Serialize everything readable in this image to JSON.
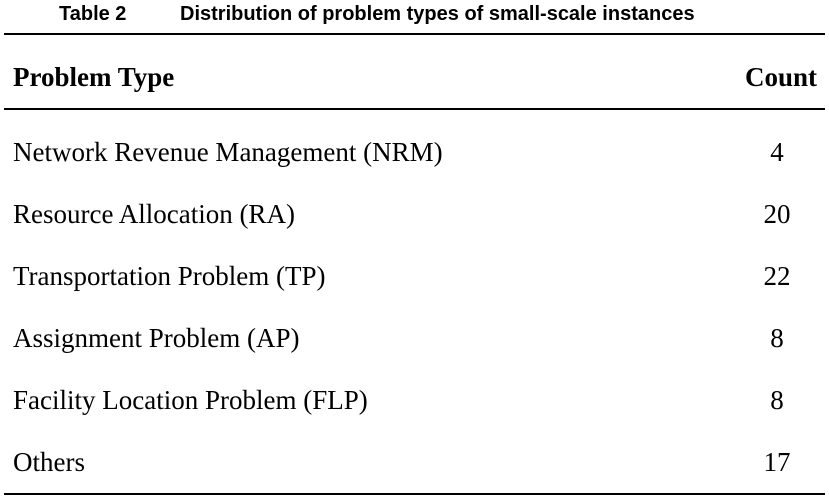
{
  "caption": {
    "label": "Table 2",
    "title": "Distribution of problem types of small-scale instances"
  },
  "header": {
    "problem_type": "Problem Type",
    "count": "Count"
  },
  "rows": [
    {
      "problem_type": "Network Revenue Management (NRM)",
      "count": "4"
    },
    {
      "problem_type": "Resource Allocation (RA)",
      "count": "20"
    },
    {
      "problem_type": "Transportation Problem (TP)",
      "count": "22"
    },
    {
      "problem_type": "Assignment Problem (AP)",
      "count": "8"
    },
    {
      "problem_type": "Facility Location Problem (FLP)",
      "count": "8"
    },
    {
      "problem_type": "Others",
      "count": "17"
    }
  ]
}
